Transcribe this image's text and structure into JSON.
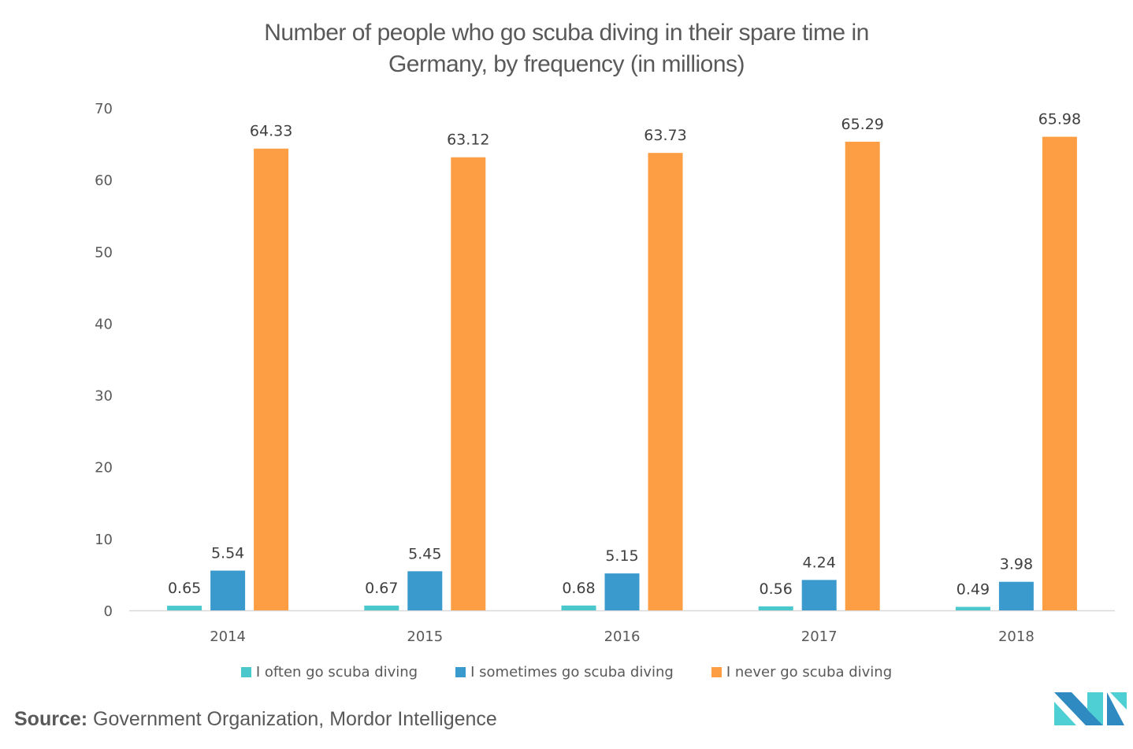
{
  "chart_data": {
    "type": "bar",
    "title": "Number of people who go scuba diving in their spare time in Germany, by frequency (in millions)",
    "title_lines": [
      "Number of people who go scuba diving in their spare time in",
      "Germany, by frequency (in millions)"
    ],
    "xlabel": "",
    "ylabel": "",
    "ylim": [
      0,
      70
    ],
    "yticks": [
      0,
      10,
      20,
      30,
      40,
      50,
      60,
      70
    ],
    "grid": false,
    "legend_position": "bottom",
    "categories": [
      "2014",
      "2015",
      "2016",
      "2017",
      "2018"
    ],
    "series": [
      {
        "name": "I often go scuba diving",
        "color": "#4bc8cc",
        "values": [
          0.65,
          0.67,
          0.68,
          0.56,
          0.49
        ],
        "labels": [
          "0.65",
          "0.67",
          "0.68",
          "0.56",
          "0.49"
        ]
      },
      {
        "name": "I sometimes go scuba diving",
        "color": "#3b9acd",
        "values": [
          5.54,
          5.45,
          5.15,
          4.24,
          3.98
        ],
        "labels": [
          "5.54",
          "5.45",
          "5.15",
          "4.24",
          "3.98"
        ]
      },
      {
        "name": "I never go scuba diving",
        "color": "#fd9e45",
        "values": [
          64.33,
          63.12,
          63.73,
          65.29,
          65.98
        ],
        "labels": [
          "64.33",
          "63.12",
          "63.73",
          "65.29",
          "65.98"
        ]
      }
    ]
  },
  "source": {
    "label": "Source:",
    "text": "Government Organization, Mordor Intelligence"
  },
  "logo": {
    "name": "Mordor Intelligence logo",
    "colors": {
      "dark": "#2e8ac0",
      "light": "#4dcfd3"
    }
  }
}
